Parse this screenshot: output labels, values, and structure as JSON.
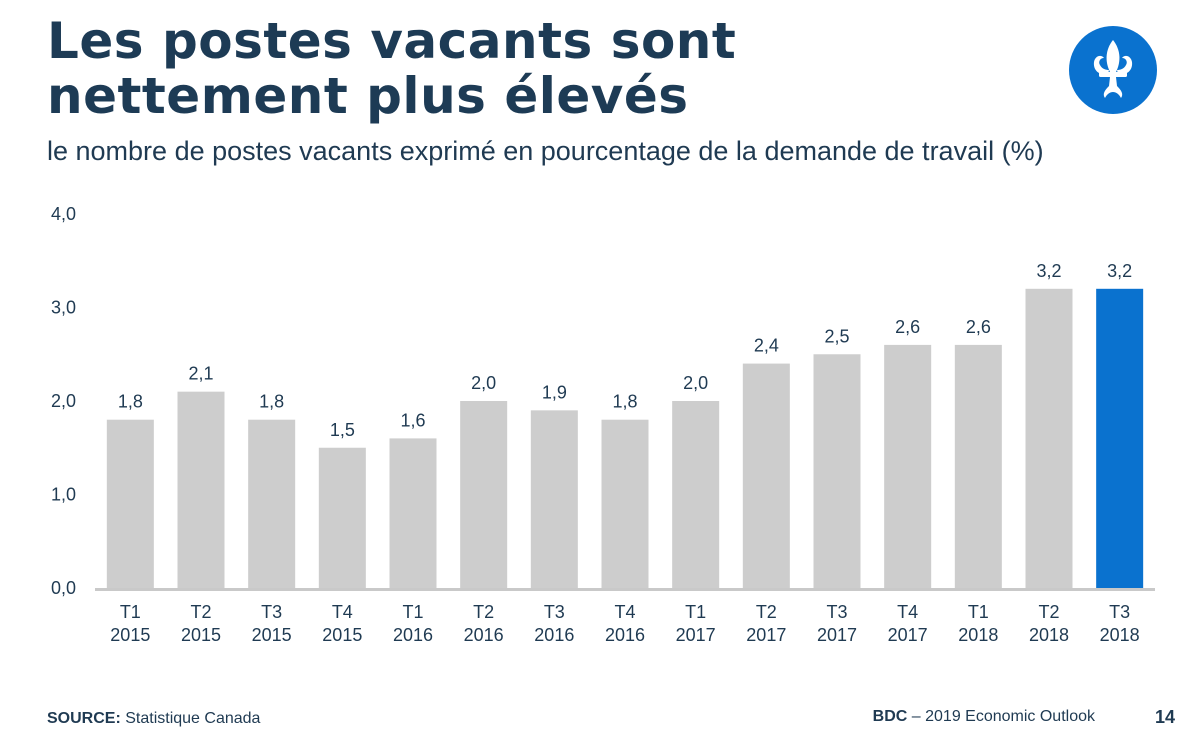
{
  "slide": {
    "title": "Les postes vacants sont nettement plus élevés",
    "subtitle": "le nombre de postes vacants exprimé en pourcentage de la demande de travail (%)",
    "source_label": "SOURCE:",
    "source_text": "Statistique Canada",
    "brand": "BDC",
    "brand_text": "– 2019 Economic Outlook",
    "page_number": "14",
    "logo_icon": "fleur-de-lis-icon"
  },
  "colors": {
    "bar": "#cdcdcd",
    "highlight": "#0a72cf",
    "axis": "#c9c9c9",
    "text": "#1f3a52",
    "logo": "#0a72cf"
  },
  "chart_data": {
    "type": "bar",
    "categories": [
      [
        "T1",
        "2015"
      ],
      [
        "T2",
        "2015"
      ],
      [
        "T3",
        "2015"
      ],
      [
        "T4",
        "2015"
      ],
      [
        "T1",
        "2016"
      ],
      [
        "T2",
        "2016"
      ],
      [
        "T3",
        "2016"
      ],
      [
        "T4",
        "2016"
      ],
      [
        "T1",
        "2017"
      ],
      [
        "T2",
        "2017"
      ],
      [
        "T3",
        "2017"
      ],
      [
        "T4",
        "2017"
      ],
      [
        "T1",
        "2018"
      ],
      [
        "T2",
        "2018"
      ],
      [
        "T3",
        "2018"
      ]
    ],
    "values": [
      1.8,
      2.1,
      1.8,
      1.5,
      1.6,
      2.0,
      1.9,
      1.8,
      2.0,
      2.4,
      2.5,
      2.6,
      2.6,
      3.2,
      3.2
    ],
    "value_labels": [
      "1,8",
      "2,1",
      "1,8",
      "1,5",
      "1,6",
      "2,0",
      "1,9",
      "1,8",
      "2,0",
      "2,4",
      "2,5",
      "2,6",
      "2,6",
      "3,2",
      "3,2"
    ],
    "highlight_index": 14,
    "ylim": [
      0,
      4
    ],
    "yticks": [
      0,
      1,
      2,
      3,
      4
    ],
    "ytick_labels": [
      "0,0",
      "1,0",
      "2,0",
      "3,0",
      "4,0"
    ],
    "grid": false,
    "legend": "none"
  }
}
